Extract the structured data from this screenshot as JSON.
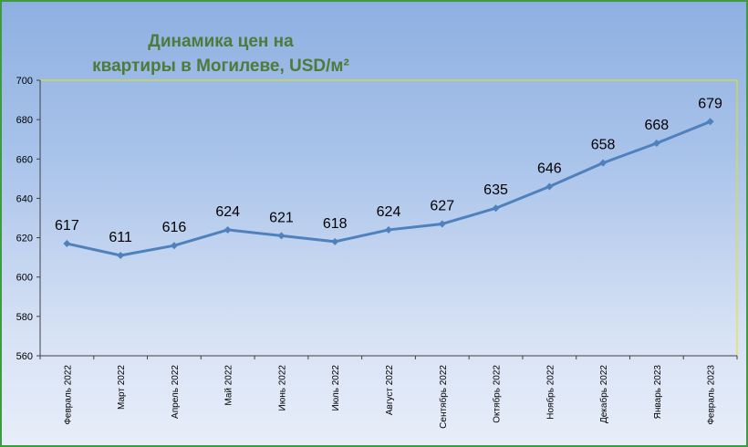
{
  "chart_data": {
    "type": "line",
    "title_line1": "Динамика цен на",
    "title_line2": "квартиры в Могилеве, USD/м²",
    "categories": [
      "Февраль 2022",
      "Март 2022",
      "Апрель 2022",
      "Май 2022",
      "Июнь 2022",
      "Июль 2022",
      "Август 2022",
      "Сентябрь 2022",
      "Октябрь 2022",
      "Ноябрь 2022",
      "Декабрь 2022",
      "Январь 2023",
      "Февраль 2023"
    ],
    "series": [
      {
        "values": [
          617,
          611,
          616,
          624,
          621,
          618,
          624,
          627,
          635,
          646,
          658,
          668,
          679
        ]
      }
    ],
    "ylim": [
      560,
      700
    ],
    "yticks": [
      560,
      580,
      600,
      620,
      640,
      660,
      680,
      700
    ],
    "grid": false,
    "line_color": "#4f81bd",
    "plot_border_color": "#e6e600"
  }
}
